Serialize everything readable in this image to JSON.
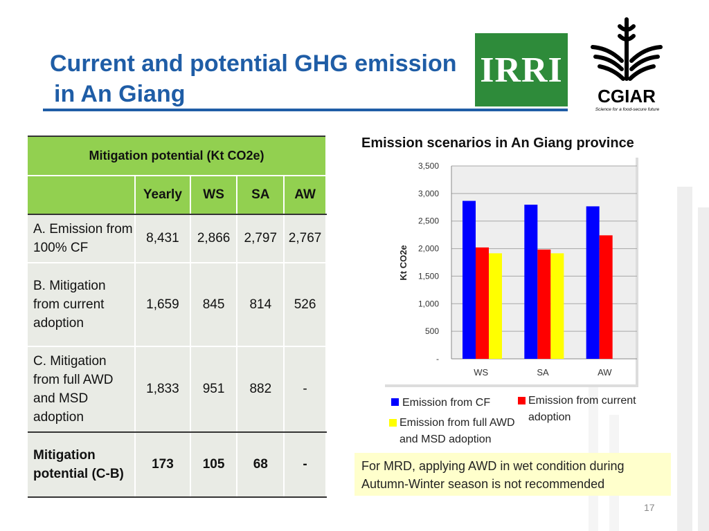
{
  "slide": {
    "title_line1": "Current and potential GHG emission",
    "title_line2": "in An Giang",
    "page_number": "17"
  },
  "logos": {
    "irri_text": "IRRI",
    "cgiar_text": "CGIAR",
    "cgiar_tagline": "Science for a food-secure future",
    "irri_color": "#2E8B3A"
  },
  "table": {
    "header": "Mitigation potential (Kt CO2e)",
    "columns": [
      "Yearly",
      "WS",
      "SA",
      "AW"
    ],
    "rows": [
      {
        "label": "A. Emission from 100% CF",
        "values": [
          "8,431",
          "2,866",
          "2,797",
          "2,767"
        ]
      },
      {
        "label": "B. Mitigation from current adoption",
        "values": [
          "1,659",
          "845",
          "814",
          "526"
        ]
      },
      {
        "label": "C. Mitigation from full AWD and MSD adoption",
        "values": [
          "1,833",
          "951",
          "882",
          "-"
        ]
      },
      {
        "label": "Mitigation potential (C-B)",
        "values": [
          "173",
          "105",
          "68",
          "-"
        ]
      }
    ],
    "header_color": "#92D050",
    "body_color": "#E9EBE5"
  },
  "chart_data": {
    "type": "bar",
    "title": "Emission scenarios in An Giang province",
    "ylabel": "Kt CO2e",
    "xlabel": "",
    "categories": [
      "WS",
      "SA",
      "AW"
    ],
    "ylim": [
      0,
      3500
    ],
    "yticks": [
      0,
      500,
      1000,
      1500,
      2000,
      2500,
      3000,
      3500
    ],
    "ytick_labels": [
      "-",
      "500",
      "1,000",
      "1,500",
      "2,000",
      "2,500",
      "3,000",
      "3,500"
    ],
    "grid": true,
    "legend": "bottom",
    "series": [
      {
        "name": "Emission from CF",
        "color": "#0000FF",
        "values": [
          2866,
          2797,
          2767
        ]
      },
      {
        "name": "Emission from current adoption",
        "color": "#FF0000",
        "values": [
          2021,
          1983,
          2241
        ]
      },
      {
        "name": "Emission from full AWD and MSD adoption",
        "color": "#FFFF00",
        "values": [
          1915,
          1915,
          null
        ]
      }
    ]
  },
  "note": "For MRD, applying AWD in wet condition during Autumn-Winter season is not recommended"
}
